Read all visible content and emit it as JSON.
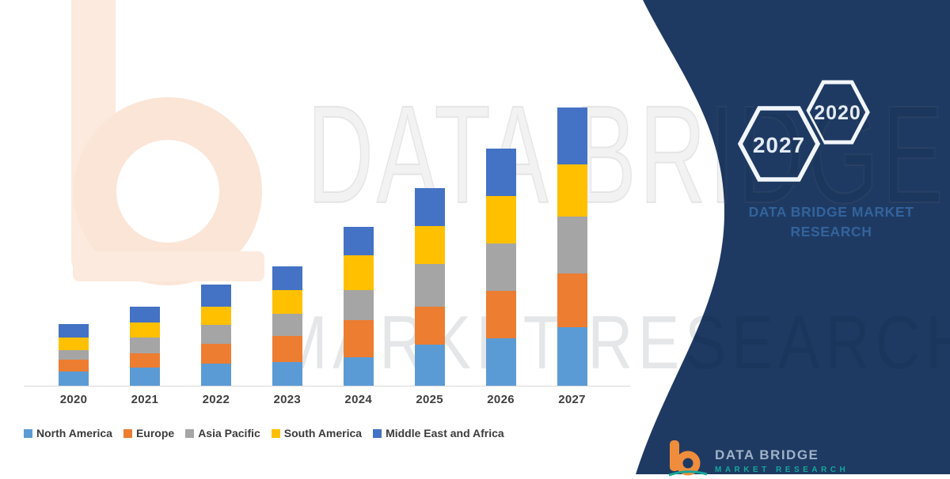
{
  "page": {
    "background": "#ffffff",
    "panel_color": "#1e3a63"
  },
  "chart_data": {
    "type": "bar",
    "stacked": true,
    "title": "",
    "xlabel": "",
    "ylabel": "",
    "units": "relative height (chart displays no value axis)",
    "value_axis_visible": false,
    "grid": false,
    "legend_position": "bottom",
    "ylim": [
      0,
      370
    ],
    "categories": [
      "2020",
      "2021",
      "2022",
      "2023",
      "2024",
      "2025",
      "2026",
      "2027"
    ],
    "series": [
      {
        "name": "North America",
        "color": "#5b9bd5",
        "values": [
          18,
          23,
          28,
          30,
          36,
          52,
          60,
          74
        ]
      },
      {
        "name": "Europe",
        "color": "#ed7d31",
        "values": [
          15,
          18,
          25,
          33,
          47,
          48,
          60,
          68
        ]
      },
      {
        "name": "Asia Pacific",
        "color": "#a5a5a5",
        "values": [
          12,
          20,
          24,
          28,
          38,
          54,
          60,
          72
        ]
      },
      {
        "name": "South America",
        "color": "#ffc000",
        "values": [
          16,
          19,
          23,
          30,
          44,
          48,
          60,
          66
        ]
      },
      {
        "name": "Middle East and Africa",
        "color": "#4472c4",
        "values": [
          17,
          20,
          28,
          30,
          36,
          48,
          60,
          72
        ]
      }
    ],
    "stack_order_bottom_to_top": [
      "North America",
      "Europe",
      "Asia Pacific",
      "South America",
      "Middle East and Africa"
    ]
  },
  "watermarks": {
    "line1": "DATA BRIDGE",
    "line2": "MARKET RESEARCH"
  },
  "panel": {
    "background": "#1e3a63",
    "hexagons": [
      {
        "label": "2027"
      },
      {
        "label": "2020"
      }
    ],
    "brand_line1": "DATA BRIDGE MARKET",
    "brand_line2": "RESEARCH",
    "brand_color": "#33639b"
  },
  "footer_logo": {
    "text": "DATA BRIDGE",
    "subtext": "MARKET RESEARCH",
    "mark_color": "#ef8d3c",
    "accent_color": "#14a79a",
    "text_color": "#9fb2c6"
  }
}
